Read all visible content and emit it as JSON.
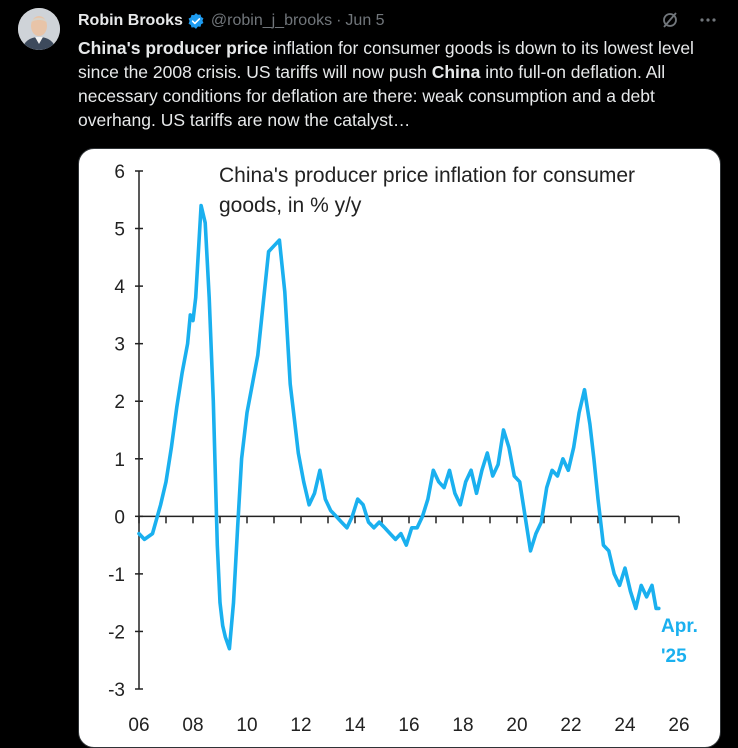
{
  "tweet": {
    "author_name": "Robin Brooks",
    "handle": "@robin_j_brooks",
    "separator": "·",
    "date": "Jun 5",
    "text_parts": [
      {
        "t": "China's producer price",
        "bold": true
      },
      {
        "t": " inflation for consumer goods is down to its lowest level since the 2008 crisis. US tariffs will now push ",
        "bold": false
      },
      {
        "t": "China",
        "bold": true
      },
      {
        "t": " into full-on deflation. All necessary conditions for deflation are there: weak consumption and a debt overhang. US tariffs are now the catalyst…",
        "bold": false
      }
    ],
    "icons": {
      "verified": "verified-badge-icon",
      "grok": "grok-icon",
      "more": "more-icon"
    },
    "colors": {
      "accent": "#1d9bf0",
      "muted": "#71767b"
    }
  },
  "chart_data": {
    "type": "line",
    "title": "China's producer price inflation for consumer goods, in % y/y",
    "title_lines": [
      "China's producer price inflation for consumer",
      "goods, in % y/y"
    ],
    "xlabel": "",
    "ylabel": "",
    "xlim": [
      2006,
      2026
    ],
    "ylim": [
      -3,
      6
    ],
    "y_ticks": [
      "6",
      "5",
      "4",
      "3",
      "2",
      "1",
      "0",
      "-1",
      "-2",
      "-3"
    ],
    "x_ticks": [
      "06",
      "08",
      "10",
      "12",
      "14",
      "16",
      "18",
      "20",
      "22",
      "24",
      "26"
    ],
    "annotation_lines": [
      "Apr.",
      "'25"
    ],
    "line_color": "#1ab0ef",
    "grid": false,
    "series": [
      {
        "x": [
          2006.0,
          2006.2,
          2006.5,
          2006.8,
          2007.0,
          2007.2,
          2007.4,
          2007.6,
          2007.8,
          2007.9,
          2008.0,
          2008.1,
          2008.2,
          2008.3,
          2008.45,
          2008.6,
          2008.75,
          2008.9,
          2009.0,
          2009.1,
          2009.2,
          2009.35,
          2009.5,
          2009.65,
          2009.8,
          2010.0,
          2010.2,
          2010.4,
          2010.6,
          2010.8,
          2011.0,
          2011.2,
          2011.4,
          2011.6,
          2011.75,
          2011.9,
          2012.1,
          2012.3,
          2012.5,
          2012.7,
          2012.9,
          2013.1,
          2013.3,
          2013.5,
          2013.7,
          2013.9,
          2014.1,
          2014.3,
          2014.5,
          2014.7,
          2014.9,
          2015.1,
          2015.3,
          2015.5,
          2015.7,
          2015.9,
          2016.1,
          2016.3,
          2016.5,
          2016.7,
          2016.9,
          2017.1,
          2017.3,
          2017.5,
          2017.7,
          2017.9,
          2018.1,
          2018.3,
          2018.5,
          2018.7,
          2018.9,
          2019.1,
          2019.3,
          2019.5,
          2019.7,
          2019.9,
          2020.1,
          2020.3,
          2020.5,
          2020.7,
          2020.9,
          2021.1,
          2021.3,
          2021.5,
          2021.7,
          2021.9,
          2022.1,
          2022.3,
          2022.5,
          2022.7,
          2022.85,
          2023.0,
          2023.2,
          2023.4,
          2023.6,
          2023.8,
          2024.0,
          2024.2,
          2024.4,
          2024.6,
          2024.8,
          2025.0,
          2025.15,
          2025.25
        ],
        "y": [
          -0.3,
          -0.4,
          -0.3,
          0.2,
          0.6,
          1.2,
          1.9,
          2.5,
          3.0,
          3.5,
          3.4,
          3.8,
          4.6,
          5.4,
          5.1,
          3.8,
          2.0,
          -0.5,
          -1.5,
          -1.9,
          -2.1,
          -2.3,
          -1.5,
          -0.2,
          1.0,
          1.8,
          2.3,
          2.8,
          3.7,
          4.6,
          4.7,
          4.8,
          3.9,
          2.3,
          1.7,
          1.1,
          0.6,
          0.2,
          0.4,
          0.8,
          0.3,
          0.1,
          0.0,
          -0.1,
          -0.2,
          0.0,
          0.3,
          0.2,
          -0.1,
          -0.2,
          -0.1,
          -0.2,
          -0.3,
          -0.4,
          -0.3,
          -0.5,
          -0.2,
          -0.2,
          0.0,
          0.3,
          0.8,
          0.6,
          0.5,
          0.8,
          0.4,
          0.2,
          0.6,
          0.8,
          0.4,
          0.8,
          1.1,
          0.7,
          0.9,
          1.5,
          1.2,
          0.7,
          0.6,
          0.0,
          -0.6,
          -0.3,
          -0.1,
          0.5,
          0.8,
          0.7,
          1.0,
          0.8,
          1.2,
          1.8,
          2.2,
          1.6,
          1.0,
          0.3,
          -0.5,
          -0.6,
          -1.0,
          -1.2,
          -0.9,
          -1.3,
          -1.6,
          -1.2,
          -1.4,
          -1.2,
          -1.6,
          -1.6
        ]
      }
    ]
  }
}
